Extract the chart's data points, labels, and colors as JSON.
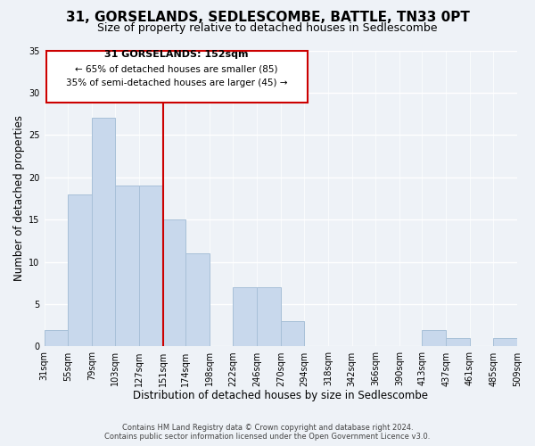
{
  "title": "31, GORSELANDS, SEDLESCOMBE, BATTLE, TN33 0PT",
  "subtitle": "Size of property relative to detached houses in Sedlescombe",
  "xlabel": "Distribution of detached houses by size in Sedlescombe",
  "ylabel": "Number of detached properties",
  "footer_line1": "Contains HM Land Registry data © Crown copyright and database right 2024.",
  "footer_line2": "Contains public sector information licensed under the Open Government Licence v3.0.",
  "bin_edges": [
    31,
    55,
    79,
    103,
    127,
    151,
    174,
    198,
    222,
    246,
    270,
    294,
    318,
    342,
    366,
    390,
    413,
    437,
    461,
    485,
    509
  ],
  "bar_heights": [
    2,
    18,
    27,
    19,
    19,
    15,
    11,
    0,
    7,
    7,
    3,
    0,
    0,
    0,
    0,
    0,
    2,
    1,
    0,
    1
  ],
  "bar_color": "#c8d8ec",
  "bar_edge_color": "#a8c0d8",
  "vline_x": 151,
  "vline_color": "#cc0000",
  "annotation_title": "31 GORSELANDS: 152sqm",
  "annotation_line1": "← 65% of detached houses are smaller (85)",
  "annotation_line2": "35% of semi-detached houses are larger (45) →",
  "annotation_box_color": "#ffffff",
  "annotation_box_edge_color": "#cc0000",
  "xlim": [
    31,
    509
  ],
  "ylim": [
    0,
    35
  ],
  "yticks": [
    0,
    5,
    10,
    15,
    20,
    25,
    30,
    35
  ],
  "xtick_labels": [
    "31sqm",
    "55sqm",
    "79sqm",
    "103sqm",
    "127sqm",
    "151sqm",
    "174sqm",
    "198sqm",
    "222sqm",
    "246sqm",
    "270sqm",
    "294sqm",
    "318sqm",
    "342sqm",
    "366sqm",
    "390sqm",
    "413sqm",
    "437sqm",
    "461sqm",
    "485sqm",
    "509sqm"
  ],
  "background_color": "#eef2f7",
  "grid_color": "#ffffff",
  "title_fontsize": 11,
  "subtitle_fontsize": 9,
  "axis_label_fontsize": 8.5,
  "tick_fontsize": 7,
  "annotation_title_fontsize": 8,
  "annotation_text_fontsize": 7.5,
  "footer_fontsize": 6
}
